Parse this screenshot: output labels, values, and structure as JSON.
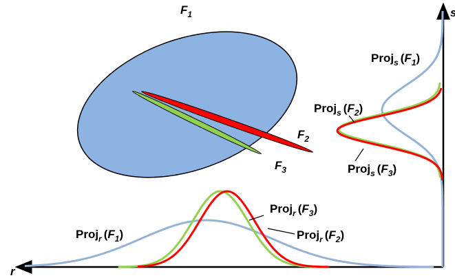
{
  "colors": {
    "f1_fill": "#8db3e2",
    "f1_stroke": "#000000",
    "f2_color": "#ff0000",
    "f3_color": "#92d050",
    "f1_curve": "#95b3d7",
    "axis": "#000000"
  },
  "axes": {
    "r_label": "r",
    "s_label": "s"
  },
  "shapes": {
    "f1_label": {
      "base": "F",
      "sub": "1"
    },
    "f2_label": {
      "base": "F",
      "sub": "2"
    },
    "f3_label": {
      "base": "F",
      "sub": "3"
    }
  },
  "projections": {
    "proj_s_f1": {
      "prefix": "Proj",
      "sub": "s",
      "open": "(",
      "base": "F",
      "arg_sub": "1",
      "close": ")"
    },
    "proj_s_f2": {
      "prefix": "Proj",
      "sub": "s",
      "open": "(",
      "base": "F",
      "arg_sub": "2",
      "close": ")"
    },
    "proj_s_f3": {
      "prefix": "Proj",
      "sub": "s",
      "open": "(",
      "base": "F",
      "arg_sub": "3",
      "close": ")"
    },
    "proj_r_f1": {
      "prefix": "Proj",
      "sub": "r",
      "open": "(",
      "base": "F",
      "arg_sub": "1",
      "close": ")"
    },
    "proj_r_f2": {
      "prefix": "Proj",
      "sub": "r",
      "open": "(",
      "base": "F",
      "arg_sub": "2",
      "close": ")"
    },
    "proj_r_f3": {
      "prefix": "Proj",
      "sub": "r",
      "open": "(",
      "base": "F",
      "arg_sub": "3",
      "close": ")"
    }
  }
}
